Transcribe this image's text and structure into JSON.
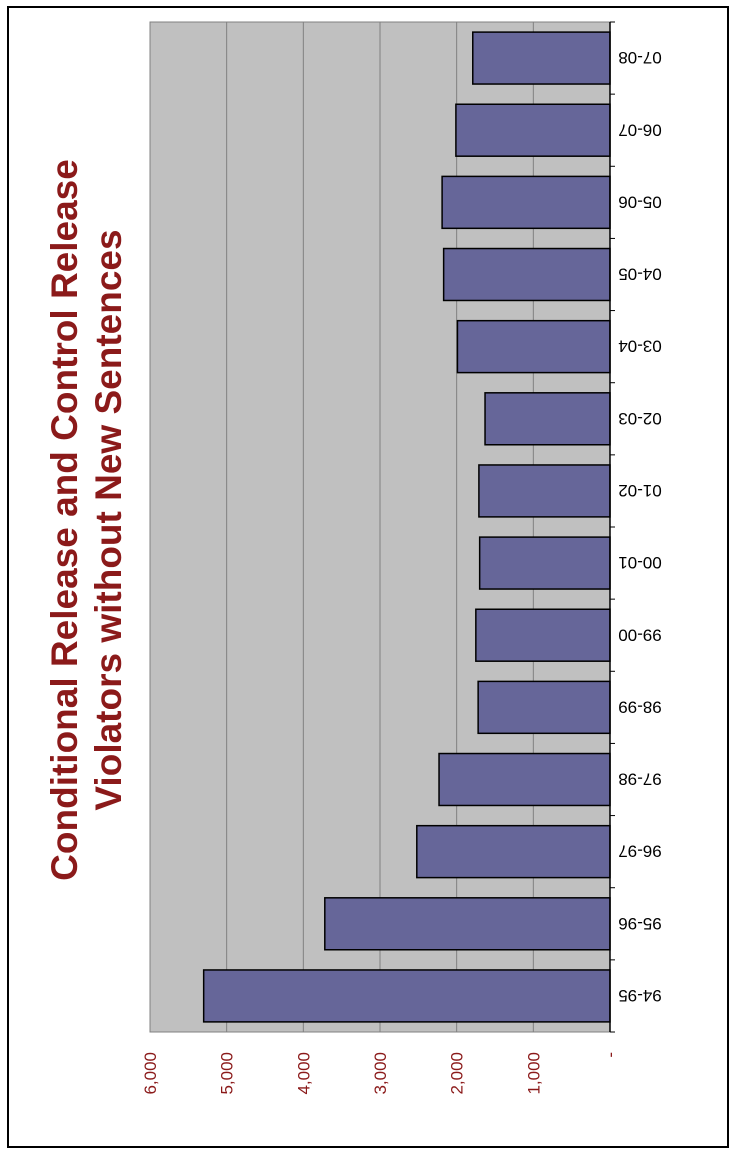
{
  "chart_data": {
    "type": "bar",
    "title_line1": "Conditional Release and Control Release",
    "title_line2": "Violators without New Sentences",
    "categories": [
      "94-95",
      "95-96",
      "96-97",
      "97-98",
      "98-99",
      "99-00",
      "00-01",
      "01-02",
      "02-03",
      "03-04",
      "04-05",
      "05-06",
      "06-07",
      "07-08"
    ],
    "values": [
      5300,
      3720,
      2520,
      2230,
      1720,
      1750,
      1700,
      1710,
      1630,
      1990,
      2170,
      2190,
      2010,
      1790
    ],
    "ylim": [
      0,
      6000
    ],
    "y_ticks": [
      {
        "value": 0,
        "label": "-"
      },
      {
        "value": 1000,
        "label": "1,000"
      },
      {
        "value": 2000,
        "label": "2,000"
      },
      {
        "value": 3000,
        "label": "3,000"
      },
      {
        "value": 4000,
        "label": "4,000"
      },
      {
        "value": 5000,
        "label": "5,000"
      },
      {
        "value": 6000,
        "label": "6,000"
      }
    ],
    "grid": true,
    "orientation": "rotated-90",
    "colors": {
      "bar": "#666699",
      "plot_bg": "#c0c0c0",
      "title": "#8b1a1a",
      "tick_label": "#8b1a1a"
    }
  }
}
